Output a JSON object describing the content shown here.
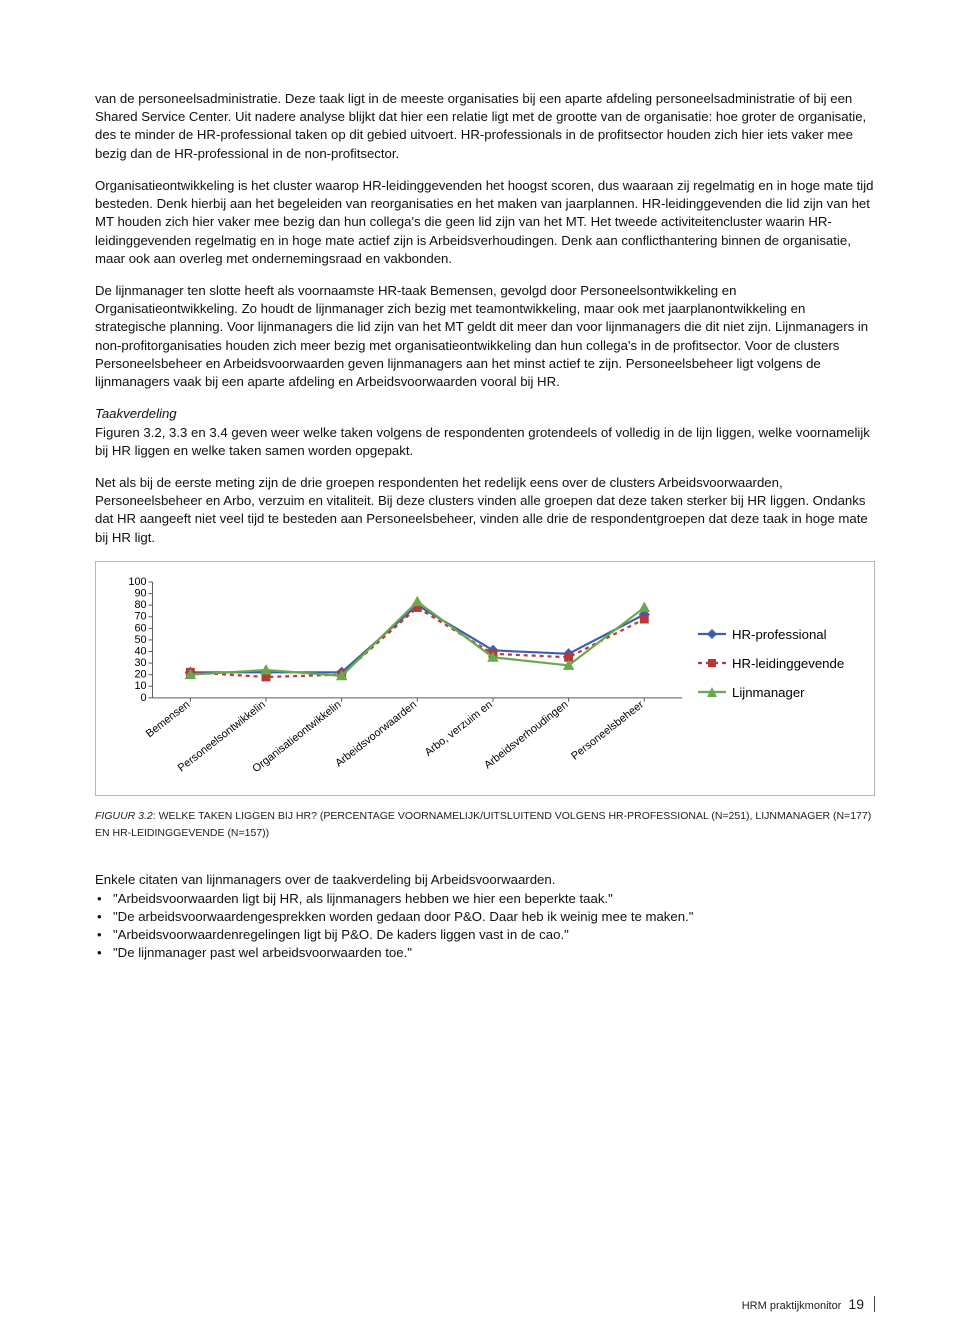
{
  "paragraphs": {
    "p1": "van de personeelsadministratie. Deze taak ligt in de meeste organisaties bij een aparte afdeling personeelsadministratie of bij een Shared Service Center. Uit nadere analyse blijkt dat hier een relatie ligt met de grootte van de organisatie: hoe groter de organisatie, des te minder de HR-professional taken op dit gebied uitvoert. HR-professionals in de profitsector houden zich hier iets vaker mee bezig dan de HR-professional in de non-profitsector.",
    "p2": "Organisatieontwikkeling is het cluster waarop HR-leidinggevenden het hoogst scoren, dus waaraan zij regelmatig en in hoge mate tijd besteden. Denk hierbij aan het begeleiden van reorganisaties en het maken van jaarplannen. HR-leidinggevenden die lid zijn van het MT houden zich hier vaker mee bezig dan hun collega's die geen lid zijn van het MT. Het tweede activiteitencluster waarin HR-leidinggevenden regelmatig en in hoge mate actief zijn is Arbeidsverhoudingen. Denk aan conflicthantering binnen de organisatie, maar ook aan overleg met ondernemingsraad en vakbonden.",
    "p3": "De lijnmanager ten slotte heeft als voornaamste HR-taak Bemensen, gevolgd door Personeelsontwikkeling en Organisatieontwikkeling. Zo houdt de lijnmanager zich bezig met teamontwikkeling, maar ook met jaarplanontwikkeling en strategische planning. Voor lijnmanagers die lid zijn van het MT geldt dit meer dan voor lijnmanagers die dit niet zijn. Lijnmanagers in non-profitorganisaties houden zich meer bezig met organisatieontwikkeling dan hun collega's in de profitsector. Voor de clusters Personeelsbeheer en Arbeidsvoorwaarden geven lijnmanagers aan het minst actief te zijn. Personeelsbeheer ligt volgens de lijnmanagers vaak bij een aparte afdeling en Arbeidsvoorwaarden vooral bij HR.",
    "sec_head": "Taakverdeling",
    "p4": "Figuren 3.2, 3.3 en 3.4 geven weer welke taken volgens de respondenten grotendeels of volledig in de lijn liggen, welke voornamelijk bij HR liggen en welke taken samen worden opgepakt.",
    "p5": "Net als bij de eerste meting zijn de drie groepen respondenten het redelijk eens over de clusters Arbeidsvoorwaarden, Personeelsbeheer en Arbo, verzuim en vitaliteit. Bij deze clusters vinden alle groepen dat deze taken sterker bij HR liggen. Ondanks dat HR aangeeft niet veel tijd te besteden aan Personeelsbeheer, vinden alle drie de respondentgroepen dat deze taak in hoge mate bij HR ligt."
  },
  "chart": {
    "type": "line",
    "categories": [
      "Bemensen",
      "Personeelsontwikkelin",
      "Organisatieontwikkelin",
      "Arbeidsvoorwaarden",
      "Arbo, verzuim en",
      "Arbeidsverhoudingen",
      "Personeelsbeheer"
    ],
    "ylim": [
      0,
      100
    ],
    "yticks": [
      0,
      10,
      20,
      30,
      40,
      50,
      60,
      70,
      80,
      90,
      100
    ],
    "series": [
      {
        "name": "HR-professional",
        "color": "#3960ac",
        "dash": "none",
        "marker": "diamond",
        "values": [
          22,
          22,
          22,
          80,
          41,
          38,
          72
        ]
      },
      {
        "name": "HR-leidinggevende",
        "color": "#b73a3a",
        "dash": "4,4",
        "marker": "square",
        "values": [
          22,
          18,
          20,
          78,
          38,
          35,
          68
        ]
      },
      {
        "name": "Lijnmanager",
        "color": "#6aa84f",
        "dash": "none",
        "marker": "triangle",
        "values": [
          20,
          24,
          19,
          83,
          35,
          28,
          78
        ]
      }
    ],
    "axis_color": "#5a5a5a",
    "tick_font": 11,
    "label_font": 11,
    "background": "#ffffff"
  },
  "caption": {
    "lead": "FIGUUR 3.2",
    "rest": ": WELKE TAKEN LIGGEN BIJ HR? (PERCENTAGE VOORNAMELIJK/UITSLUITEND VOLGENS HR-PROFESSIONAL (N=251), LIJNMANAGER (N=177) EN HR-LEIDINGGEVENDE (N=157))"
  },
  "quotes": {
    "intro": "Enkele citaten van lijnmanagers over de taakverdeling bij Arbeidsvoorwaarden.",
    "items": [
      "\"Arbeidsvoorwaarden ligt bij HR, als lijnmanagers hebben we hier een beperkte taak.\"",
      "\"De arbeidsvoorwaardengesprekken worden gedaan door P&O. Daar heb ik weinig mee te maken.\"",
      "\"Arbeidsvoorwaardenregelingen ligt bij P&O. De kaders liggen vast in de cao.\"",
      "\"De lijnmanager past wel arbeidsvoorwaarden toe.\""
    ]
  },
  "footer": {
    "src": "HRM praktijkmonitor",
    "page": "19"
  }
}
